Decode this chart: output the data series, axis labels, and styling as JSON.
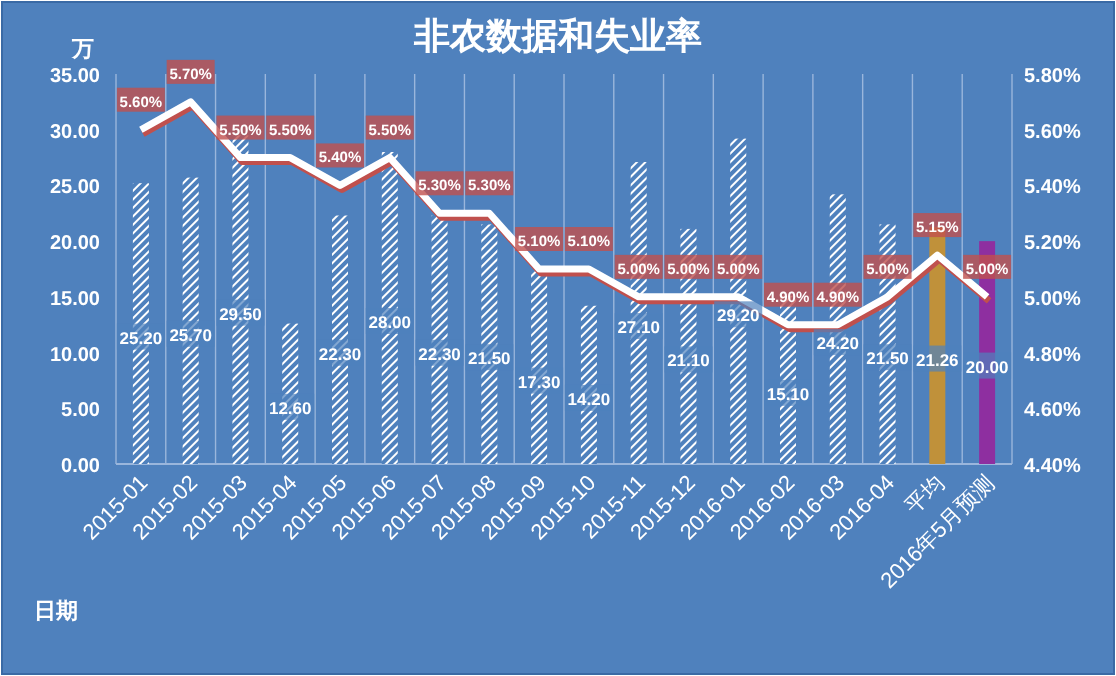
{
  "chart_data": {
    "type": "bar",
    "title": "非农数据和失业率",
    "xlabel": "日期",
    "ylabel": "万",
    "categories": [
      "2015-01",
      "2015-02",
      "2015-03",
      "2015-04",
      "2015-05",
      "2015-06",
      "2015-07",
      "2015-08",
      "2015-09",
      "2015-10",
      "2015-11",
      "2015-12",
      "2016-01",
      "2016-02",
      "2016-03",
      "2016-04",
      "平均",
      "2016年5月预测"
    ],
    "series": [
      {
        "colors": [
          "#ffffff",
          "#ffffff",
          "#ffffff",
          "#ffffff",
          "#ffffff",
          "#ffffff",
          "#ffffff",
          "#ffffff",
          "#ffffff",
          "#ffffff",
          "#ffffff",
          "#ffffff",
          "#ffffff",
          "#ffffff",
          "#ffffff",
          "#ffffff",
          "#c0913a",
          "#8e2fa0"
        ],
        "values": [
          25.2,
          25.7,
          29.5,
          12.6,
          22.3,
          28.0,
          22.3,
          21.5,
          17.3,
          14.2,
          27.1,
          21.1,
          29.2,
          15.1,
          24.2,
          21.5,
          21.26,
          20.0
        ],
        "value_labels": [
          "25.20",
          "25.70",
          "29.50",
          "12.60",
          "22.30",
          "28.00",
          "22.30",
          "21.50",
          "17.30",
          "14.20",
          "27.10",
          "21.10",
          "29.20",
          "15.10",
          "24.20",
          "21.50",
          "21.26",
          "20.00"
        ]
      },
      {
        "type": "line",
        "axis": "y2",
        "color": "#ffffff",
        "values": [
          5.6,
          5.7,
          5.5,
          5.5,
          5.4,
          5.5,
          5.3,
          5.3,
          5.1,
          5.1,
          5.0,
          5.0,
          5.0,
          4.9,
          4.9,
          5.0,
          5.15,
          5.0
        ],
        "value_labels": [
          "5.60%",
          "5.70%",
          "5.50%",
          "5.50%",
          "5.40%",
          "5.50%",
          "5.30%",
          "5.30%",
          "5.10%",
          "5.10%",
          "5.00%",
          "5.00%",
          "5.00%",
          "4.90%",
          "4.90%",
          "5.00%",
          "5.15%",
          "5.00%"
        ]
      }
    ],
    "ylim": [
      0,
      35
    ],
    "yticks": [
      {
        "value": 0,
        "label": "0.00"
      },
      {
        "value": 5,
        "label": "5.00"
      },
      {
        "value": 10,
        "label": "10.00"
      },
      {
        "value": 15,
        "label": "15.00"
      },
      {
        "value": 20,
        "label": "20.00"
      },
      {
        "value": 25,
        "label": "25.00"
      },
      {
        "value": 30,
        "label": "30.00"
      },
      {
        "value": 35,
        "label": "35.00"
      }
    ],
    "y2lim": [
      4.4,
      5.8
    ],
    "y2ticks": [
      {
        "value": 4.4,
        "label": "4.40%"
      },
      {
        "value": 4.6,
        "label": "4.60%"
      },
      {
        "value": 4.8,
        "label": "4.80%"
      },
      {
        "value": 5.0,
        "label": "5.00%"
      },
      {
        "value": 5.2,
        "label": "5.20%"
      },
      {
        "value": 5.4,
        "label": "5.40%"
      },
      {
        "value": 5.6,
        "label": "5.60%"
      },
      {
        "value": 5.8,
        "label": "5.80%"
      }
    ],
    "grid": "x"
  }
}
